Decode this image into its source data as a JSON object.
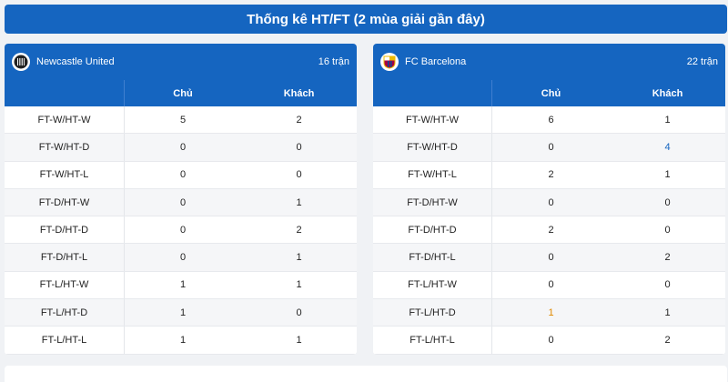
{
  "title": "Thống kê HT/FT (2 mùa giải gần đây)",
  "columns": {
    "home": "Chủ",
    "away": "Khách"
  },
  "teams": [
    {
      "name": "Newcastle United",
      "matches": "16 trận",
      "rows": [
        {
          "label": "FT-W/HT-W",
          "home": "5",
          "away": "2"
        },
        {
          "label": "FT-W/HT-D",
          "home": "0",
          "away": "0"
        },
        {
          "label": "FT-W/HT-L",
          "home": "0",
          "away": "0"
        },
        {
          "label": "FT-D/HT-W",
          "home": "0",
          "away": "1"
        },
        {
          "label": "FT-D/HT-D",
          "home": "0",
          "away": "2"
        },
        {
          "label": "FT-D/HT-L",
          "home": "0",
          "away": "1"
        },
        {
          "label": "FT-L/HT-W",
          "home": "1",
          "away": "1"
        },
        {
          "label": "FT-L/HT-D",
          "home": "1",
          "away": "0"
        },
        {
          "label": "FT-L/HT-L",
          "home": "1",
          "away": "1"
        }
      ]
    },
    {
      "name": "FC Barcelona",
      "matches": "22 trận",
      "rows": [
        {
          "label": "FT-W/HT-W",
          "home": "6",
          "away": "1"
        },
        {
          "label": "FT-W/HT-D",
          "home": "0",
          "away": "4"
        },
        {
          "label": "FT-W/HT-L",
          "home": "2",
          "away": "1"
        },
        {
          "label": "FT-D/HT-W",
          "home": "0",
          "away": "0"
        },
        {
          "label": "FT-D/HT-D",
          "home": "2",
          "away": "0"
        },
        {
          "label": "FT-D/HT-L",
          "home": "0",
          "away": "2"
        },
        {
          "label": "FT-L/HT-W",
          "home": "0",
          "away": "0"
        },
        {
          "label": "FT-L/HT-D",
          "home": "1",
          "away": "1"
        },
        {
          "label": "FT-L/HT-L",
          "home": "0",
          "away": "2"
        }
      ]
    }
  ],
  "colors": {
    "header": "#1565c0",
    "highlight_blue": "#1565c0",
    "highlight_orange": "#e08a00"
  },
  "icons": {
    "newcastle_logo": "newcastle-crest-icon",
    "barcelona_logo": "barcelona-crest-icon"
  }
}
